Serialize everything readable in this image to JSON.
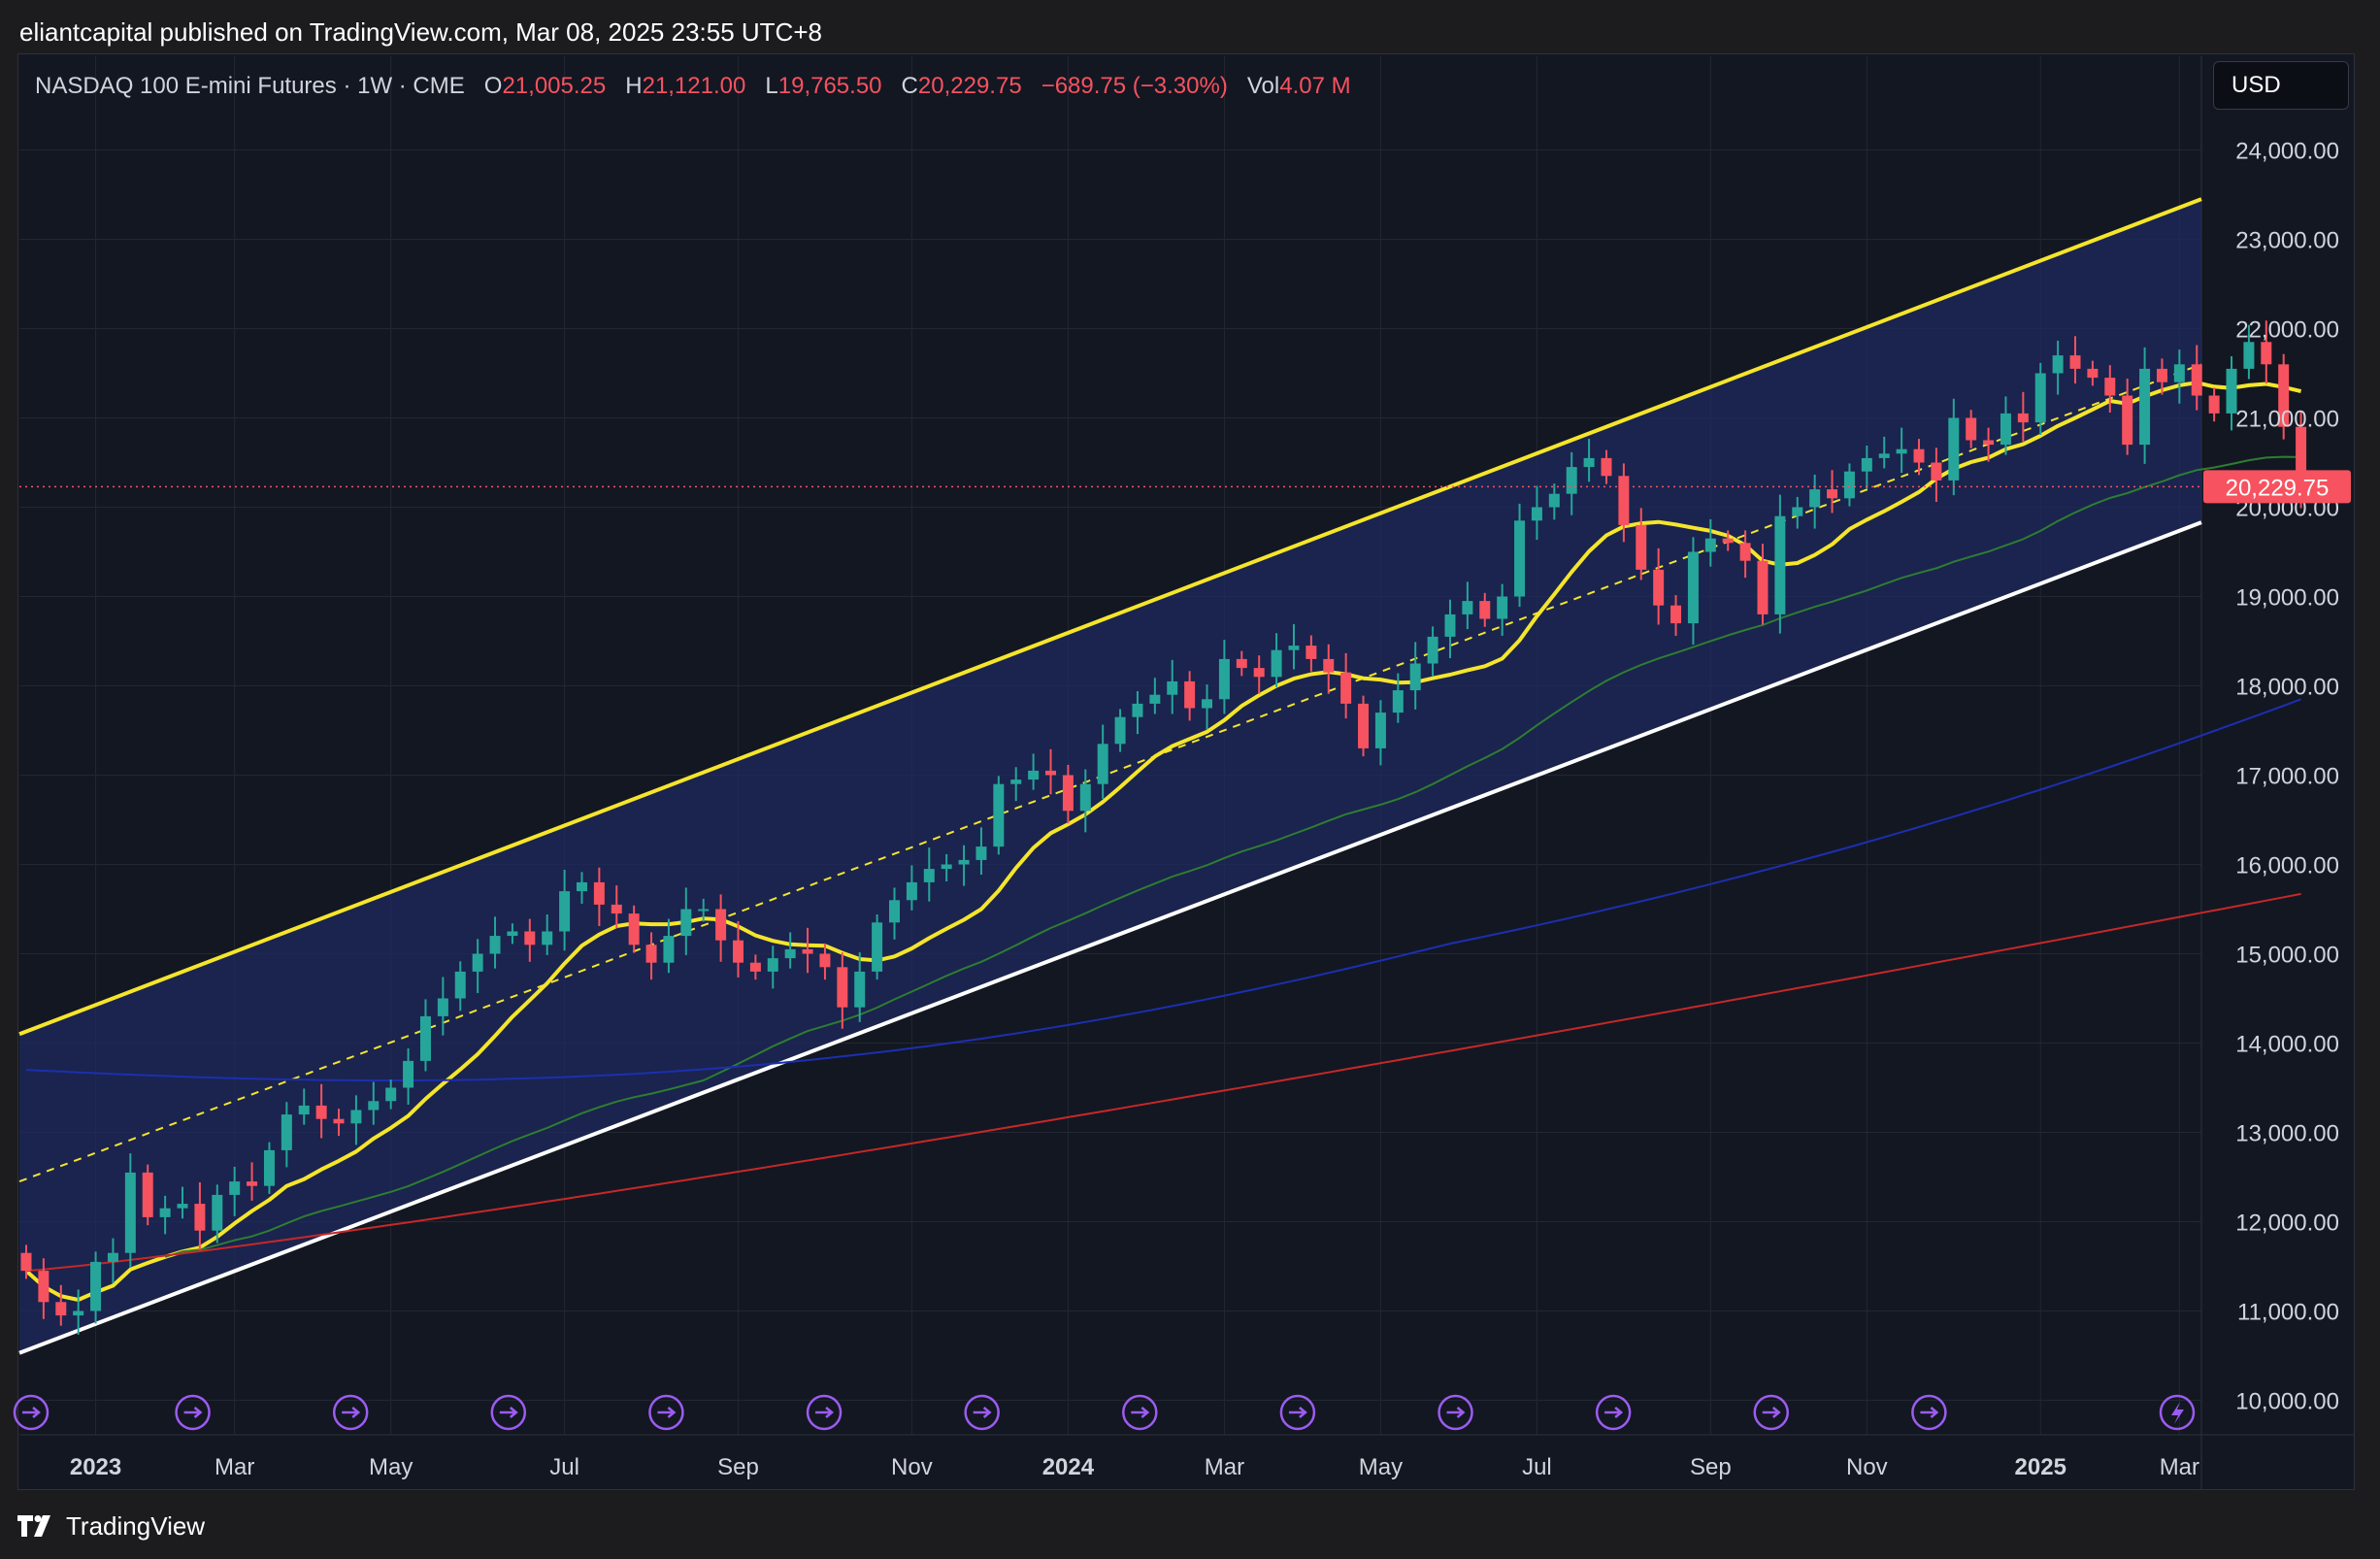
{
  "header": {
    "published_text": "eliantcapital published on TradingView.com, Mar 08, 2025 23:55 UTC+8"
  },
  "legend": {
    "symbol": "NASDAQ 100 E-mini Futures · 1W · CME",
    "o_label": "O",
    "o_value": "21,005.25",
    "h_label": "H",
    "h_value": "21,121.00",
    "l_label": "L",
    "l_value": "19,765.50",
    "c_label": "C",
    "c_value": "20,229.75",
    "change": "−689.75 (−3.30%)",
    "vol_label": "Vol",
    "vol_value": "4.07 M"
  },
  "currency_button": "USD",
  "footer": {
    "brand": "TradingView"
  },
  "colors": {
    "bull": "#26a69a",
    "bear": "#f7525f",
    "channel_upper": "#f5e52b",
    "channel_lower": "#ffffff",
    "ma_fast": "#f5e52b",
    "ma_green": "#2e7d32",
    "ma_blue": "#1c2fb0",
    "ma_red": "#c62828",
    "fill": "#1e2a5e"
  },
  "chart_data": {
    "type": "candlestick",
    "interval": "1W",
    "ylim": [
      9800,
      24500
    ],
    "y_ticks": [
      "24,000.00",
      "23,000.00",
      "22,000.00",
      "21,000.00",
      "20,000.00",
      "19,000.00",
      "18,000.00",
      "17,000.00",
      "16,000.00",
      "15,000.00",
      "14,000.00",
      "13,000.00",
      "12,000.00",
      "11,000.00",
      "10,000.00"
    ],
    "y_tick_values": [
      24000,
      23000,
      22000,
      21000,
      20000,
      19000,
      18000,
      17000,
      16000,
      15000,
      14000,
      13000,
      12000,
      11000,
      10000
    ],
    "x_ticks": [
      {
        "label": "2023",
        "week": 4,
        "bold": true
      },
      {
        "label": "Mar",
        "week": 12
      },
      {
        "label": "May",
        "week": 21
      },
      {
        "label": "Jul",
        "week": 31
      },
      {
        "label": "Sep",
        "week": 41
      },
      {
        "label": "Nov",
        "week": 51
      },
      {
        "label": "2024",
        "week": 60,
        "bold": true
      },
      {
        "label": "Mar",
        "week": 69
      },
      {
        "label": "May",
        "week": 78
      },
      {
        "label": "Jul",
        "week": 87
      },
      {
        "label": "Sep",
        "week": 97
      },
      {
        "label": "Nov",
        "week": 106
      },
      {
        "label": "2025",
        "week": 116,
        "bold": true
      },
      {
        "label": "Mar",
        "week": 124
      }
    ],
    "last_price_label": "20,229.75",
    "last_price": 20229.75,
    "closes": [
      11450,
      11100,
      10950,
      11000,
      11550,
      11650,
      12550,
      12050,
      12150,
      12200,
      11900,
      12300,
      12450,
      12400,
      12800,
      13200,
      13300,
      13150,
      13100,
      13250,
      13350,
      13500,
      13800,
      14300,
      14500,
      14800,
      15000,
      15200,
      15250,
      15100,
      15250,
      15700,
      15800,
      15550,
      15450,
      15100,
      14900,
      15200,
      15500,
      15500,
      15150,
      14900,
      14800,
      14950,
      15050,
      15000,
      14850,
      14400,
      14800,
      15350,
      15600,
      15800,
      15950,
      16000,
      16050,
      16200,
      16900,
      16950,
      17050,
      17000,
      16600,
      16900,
      17350,
      17650,
      17800,
      17900,
      18050,
      17750,
      17850,
      18300,
      18200,
      18100,
      18400,
      18450,
      18300,
      18150,
      17800,
      17300,
      17700,
      17950,
      18250,
      18550,
      18800,
      18950,
      18750,
      19000,
      19850,
      20000,
      20150,
      20450,
      20550,
      20350,
      19800,
      19300,
      18900,
      18700,
      19500,
      19650,
      19600,
      19400,
      18800,
      19900,
      20000,
      20200,
      20100,
      20400,
      20550,
      20600,
      20650,
      20500,
      20300,
      21000,
      20750,
      20700,
      21050,
      20950,
      21500,
      21700,
      21550,
      21450,
      21250,
      20700,
      21550,
      21400,
      21600,
      21250,
      21050,
      21550,
      21850,
      21600,
      20900,
      20229.75
    ],
    "moving_averages": [
      {
        "name": "ma_fast",
        "color": "#f5e52b"
      },
      {
        "name": "ma_green",
        "color": "#2e7d32"
      },
      {
        "name": "ma_blue",
        "color": "#1c2fb0"
      },
      {
        "name": "ma_red",
        "color": "#c62828"
      }
    ],
    "channel": {
      "upper_start": 14100,
      "upper_end": 23450,
      "lower_start": 10530,
      "lower_end": 19830,
      "mid_start": 12450,
      "mid_end": 21600
    }
  }
}
